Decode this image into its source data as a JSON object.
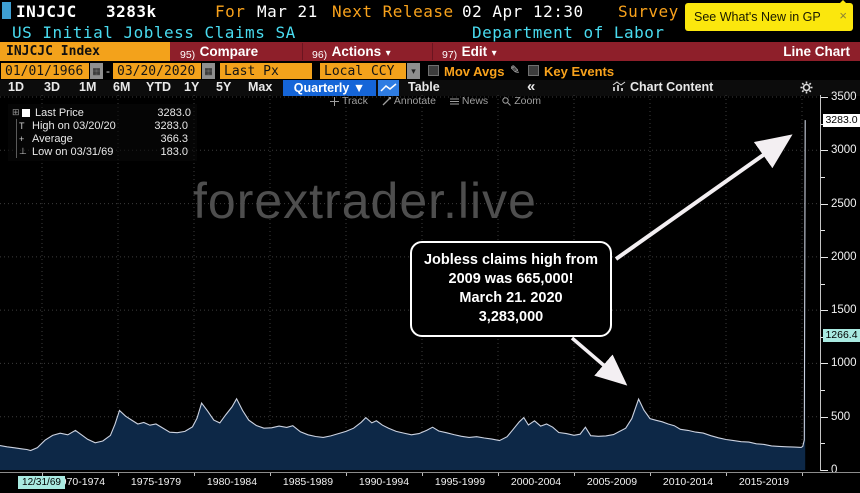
{
  "header": {
    "ticker": "INJCJC",
    "ticker_value": "3283k",
    "for_label": "For",
    "for_date": "Mar 21",
    "next_release_label": "Next Release",
    "next_release_value": "02 Apr 12:30",
    "survey_label": "Survey",
    "security_name": "US Initial Jobless Claims SA",
    "source": "Department of Labor",
    "whats_new": "See What's New in GP",
    "close_icon": "×"
  },
  "menubar": {
    "security_field": "INJCJC Index",
    "items": [
      {
        "num": "95)",
        "label": "Compare",
        "arrow": ""
      },
      {
        "num": "96)",
        "label": "Actions",
        "arrow": "▾"
      },
      {
        "num": "97)",
        "label": "Edit",
        "arrow": "▾"
      }
    ],
    "right_label": "Line Chart"
  },
  "controls": {
    "date_from": "01/01/1966",
    "date_separator": "-",
    "date_to": "03/20/2020",
    "calendar_icon": "▦",
    "px_field": "Last Px",
    "ccy_field": "Local CCY",
    "ccy_arrow": "▾",
    "mov_avgs_label": "Mov Avgs",
    "pencil_icon": "✎",
    "key_events_label": "Key Events"
  },
  "toolbar": {
    "ranges": [
      "1D",
      "3D",
      "1M",
      "6M",
      "YTD",
      "1Y",
      "5Y",
      "Max"
    ],
    "period": "Quarterly ▼",
    "table_label": "Table",
    "collapse_icon": "«",
    "chart_content_label": "Chart Content"
  },
  "chart_tools": [
    {
      "label": "Track"
    },
    {
      "label": "Annotate"
    },
    {
      "label": "News"
    },
    {
      "label": "Zoom"
    }
  ],
  "legend": {
    "expander_icon": "⊞",
    "rows": [
      {
        "marker": "■",
        "label": "Last Price",
        "value": "3283.0"
      },
      {
        "marker": "T",
        "label": "High on 03/20/20",
        "value": "3283.0"
      },
      {
        "marker": "+",
        "label": "Average",
        "value": "366.3"
      },
      {
        "marker": "⊥",
        "label": "Low on 03/31/69",
        "value": "183.0"
      }
    ]
  },
  "annotation": {
    "lines": [
      "Jobless claims high from",
      "2009 was 665,000!",
      "March 21. 2020",
      "3,283,000"
    ]
  },
  "watermark": "forextrader.live",
  "colors": {
    "amber": "#f3a21b",
    "menu_red": "#8e1f2a",
    "cyan_text": "#49dcf0",
    "orange_text": "#f8a21c",
    "tooltip_yellow": "#fbe70d",
    "selected_blue": "#1565d8",
    "area_fill": "#0d2847",
    "line_color": "#ccd2e0",
    "teal_label_bg": "#a9eae1",
    "gridline": "#3c3c3c"
  },
  "chart_data": {
    "type": "area",
    "title": "US Initial Jobless Claims SA (INJCJC)",
    "units": "thousands",
    "period": "Quarterly",
    "ylim": [
      0,
      3500
    ],
    "y_ticks": [
      0,
      500,
      1000,
      1500,
      2000,
      2500,
      3000,
      3500
    ],
    "y_minor_step": 250,
    "x_gridline_years": [
      1970,
      1975,
      1980,
      1985,
      1990,
      1995,
      2000,
      2005,
      2010,
      2015,
      2020
    ],
    "x_bucket_labels": [
      "1970-1974",
      "1975-1979",
      "1980-1984",
      "1985-1989",
      "1990-1994",
      "1995-1999",
      "2000-2004",
      "2005-2009",
      "2010-2014",
      "2015-2019"
    ],
    "first_date_label": "12/31/69",
    "stats": {
      "last_price": 3283.0,
      "high_date": "03/20/20",
      "high": 3283.0,
      "average": 366.3,
      "low_date": "03/31/69",
      "low": 183.0
    },
    "axis_price_markers": [
      {
        "value": 3283.0,
        "label": "3283.0",
        "bg": "#ffffff"
      },
      {
        "value": 1266.4,
        "label": "1266.4",
        "bg": "#a9eae1"
      }
    ],
    "series": [
      {
        "name": "Last Price",
        "points": [
          [
            1967.2,
            230
          ],
          [
            1967.7,
            218
          ],
          [
            1968.2,
            208
          ],
          [
            1968.7,
            198
          ],
          [
            1969.0,
            192
          ],
          [
            1969.25,
            183
          ],
          [
            1969.7,
            210
          ],
          [
            1970.2,
            280
          ],
          [
            1970.7,
            325
          ],
          [
            1971.2,
            345
          ],
          [
            1971.7,
            330
          ],
          [
            1972.2,
            372
          ],
          [
            1972.6,
            330
          ],
          [
            1973.0,
            288
          ],
          [
            1973.5,
            255
          ],
          [
            1974.0,
            272
          ],
          [
            1974.5,
            325
          ],
          [
            1974.8,
            430
          ],
          [
            1975.1,
            558
          ],
          [
            1975.5,
            505
          ],
          [
            1975.9,
            468
          ],
          [
            1976.3,
            432
          ],
          [
            1976.7,
            446
          ],
          [
            1977.1,
            420
          ],
          [
            1977.5,
            432
          ],
          [
            1977.9,
            398
          ],
          [
            1978.4,
            355
          ],
          [
            1978.9,
            350
          ],
          [
            1979.4,
            362
          ],
          [
            1979.9,
            405
          ],
          [
            1980.2,
            485
          ],
          [
            1980.5,
            628
          ],
          [
            1980.9,
            552
          ],
          [
            1981.3,
            468
          ],
          [
            1981.7,
            442
          ],
          [
            1982.1,
            520
          ],
          [
            1982.5,
            592
          ],
          [
            1982.8,
            668
          ],
          [
            1983.2,
            558
          ],
          [
            1983.6,
            468
          ],
          [
            1984.1,
            418
          ],
          [
            1984.6,
            392
          ],
          [
            1985.1,
            396
          ],
          [
            1985.6,
            412
          ],
          [
            1986.1,
            400
          ],
          [
            1986.5,
            416
          ],
          [
            1987.0,
            358
          ],
          [
            1987.5,
            330
          ],
          [
            1988.0,
            314
          ],
          [
            1988.5,
            306
          ],
          [
            1989.0,
            320
          ],
          [
            1989.5,
            342
          ],
          [
            1990.0,
            362
          ],
          [
            1990.5,
            392
          ],
          [
            1991.0,
            448
          ],
          [
            1991.3,
            492
          ],
          [
            1991.7,
            442
          ],
          [
            1992.0,
            462
          ],
          [
            1992.4,
            420
          ],
          [
            1992.8,
            392
          ],
          [
            1993.3,
            362
          ],
          [
            1993.8,
            346
          ],
          [
            1994.3,
            330
          ],
          [
            1994.8,
            342
          ],
          [
            1995.3,
            372
          ],
          [
            1995.7,
            402
          ],
          [
            1996.1,
            366
          ],
          [
            1996.6,
            350
          ],
          [
            1997.1,
            332
          ],
          [
            1997.6,
            316
          ],
          [
            1998.1,
            306
          ],
          [
            1998.6,
            312
          ],
          [
            1999.1,
            300
          ],
          [
            1999.6,
            290
          ],
          [
            2000.1,
            276
          ],
          [
            2000.6,
            312
          ],
          [
            2001.0,
            382
          ],
          [
            2001.4,
            452
          ],
          [
            2001.7,
            492
          ],
          [
            2002.0,
            422
          ],
          [
            2002.4,
            462
          ],
          [
            2002.8,
            412
          ],
          [
            2003.2,
            432
          ],
          [
            2003.6,
            402
          ],
          [
            2004.0,
            352
          ],
          [
            2004.5,
            342
          ],
          [
            2005.0,
            326
          ],
          [
            2005.4,
            336
          ],
          [
            2005.75,
            402
          ],
          [
            2006.1,
            322
          ],
          [
            2006.6,
            316
          ],
          [
            2007.1,
            320
          ],
          [
            2007.6,
            332
          ],
          [
            2008.0,
            362
          ],
          [
            2008.4,
            392
          ],
          [
            2008.8,
            482
          ],
          [
            2009.25,
            665
          ],
          [
            2009.6,
            562
          ],
          [
            2010.0,
            482
          ],
          [
            2010.4,
            466
          ],
          [
            2010.8,
            452
          ],
          [
            2011.2,
            432
          ],
          [
            2011.6,
            416
          ],
          [
            2012.0,
            382
          ],
          [
            2012.5,
            372
          ],
          [
            2013.0,
            356
          ],
          [
            2013.5,
            346
          ],
          [
            2014.0,
            322
          ],
          [
            2014.5,
            302
          ],
          [
            2015.0,
            286
          ],
          [
            2015.5,
            276
          ],
          [
            2016.0,
            266
          ],
          [
            2016.5,
            262
          ],
          [
            2017.0,
            246
          ],
          [
            2017.5,
            240
          ],
          [
            2018.0,
            226
          ],
          [
            2018.5,
            221
          ],
          [
            2019.0,
            218
          ],
          [
            2019.5,
            215
          ],
          [
            2019.95,
            212
          ],
          [
            2020.05,
            222
          ],
          [
            2020.15,
            282
          ],
          [
            2020.21,
            3283
          ]
        ]
      }
    ],
    "annotations": [
      {
        "text": "Jobless claims high from 2009 was 665,000! March 21. 2020 3,283,000",
        "arrow_targets": [
          {
            "year": 2020.21,
            "value": 3283
          },
          {
            "year": 2009.25,
            "value": 665
          }
        ]
      }
    ],
    "legend_position": "top-left",
    "grid": true
  }
}
